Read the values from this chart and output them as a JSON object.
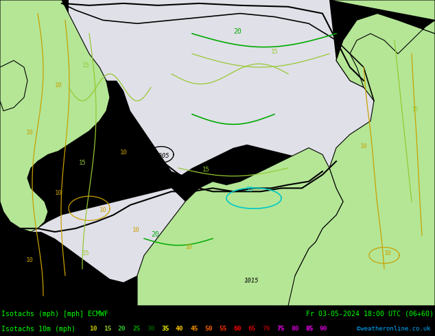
{
  "title_left": "Isotachs (mph) [mph] ECMWF",
  "title_right": "Fr 03-05-2024 18:00 UTC (06+60)",
  "legend_label": "Isotachs 10m (mph)",
  "copyright": "©weatheronline.co.uk",
  "legend_values": [
    10,
    15,
    20,
    25,
    30,
    35,
    40,
    45,
    50,
    55,
    60,
    65,
    70,
    75,
    80,
    85,
    90
  ],
  "legend_colors": [
    "#c8f0a0",
    "#96e664",
    "#64dc32",
    "#32c800",
    "#00aa00",
    "#ffff00",
    "#ffc800",
    "#ff9600",
    "#ff6400",
    "#ff3200",
    "#e60000",
    "#c80000",
    "#aa0000",
    "#960000",
    "#780000",
    "#ff00ff",
    "#c800c8"
  ],
  "land_green": "#b4e696",
  "land_light_green": "#c8f0a0",
  "sea_gray": "#d8d8e0",
  "high_pressure_gray": "#e0e0e8",
  "coast_color": "#000000",
  "contour_10_color": "#c8a000",
  "contour_15_color": "#96c832",
  "contour_20_color": "#00aa00",
  "contour_25_color": "#00c8c8",
  "bottom_bar_bg": "#000000",
  "title_color": "#00ff00",
  "figsize": [
    6.34,
    4.9
  ],
  "dpi": 100
}
